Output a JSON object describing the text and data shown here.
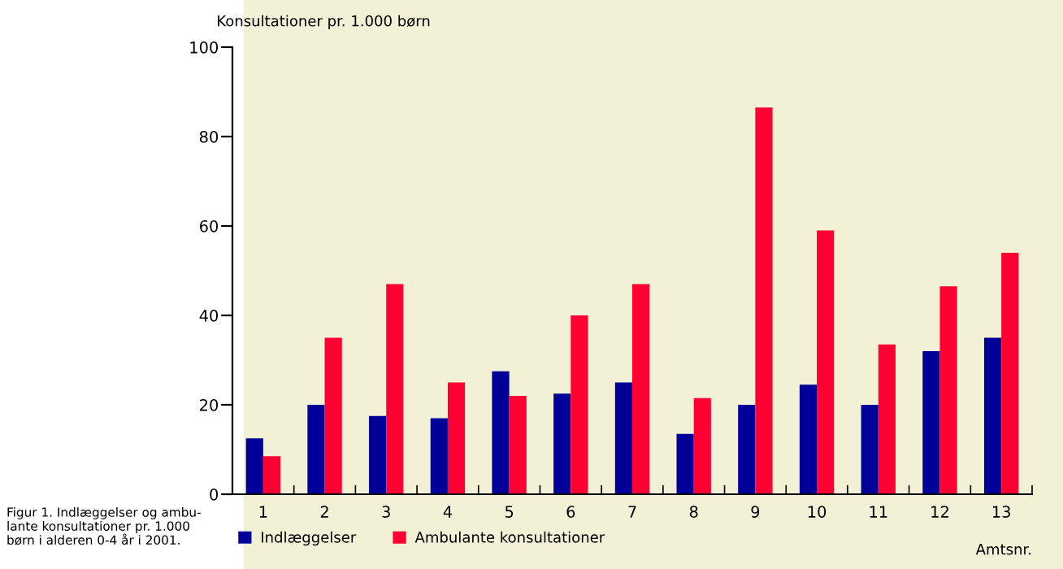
{
  "chart_data": {
    "type": "bar",
    "ylabel": "Konsultationer pr. 1.000 børn",
    "xlabel": "Amtsnr.",
    "categories": [
      "1",
      "2",
      "3",
      "4",
      "5",
      "6",
      "7",
      "8",
      "9",
      "10",
      "11",
      "12",
      "13"
    ],
    "series": [
      {
        "name": "Indlæggelser",
        "color": "#000099",
        "values": [
          12.5,
          20,
          17.5,
          17,
          27.5,
          22.5,
          25,
          13.5,
          20,
          24.5,
          20,
          32,
          35
        ]
      },
      {
        "name": "Ambulante konsultationer",
        "color": "#ff0033",
        "values": [
          8.5,
          35,
          47,
          25,
          22,
          40,
          47,
          21.5,
          86.5,
          59,
          33.5,
          46.5,
          54
        ]
      }
    ],
    "ylim": [
      0,
      100
    ],
    "yticks": [
      0,
      20,
      40,
      60,
      80,
      100
    ],
    "grid": false,
    "legend": "bottom left",
    "annotations": [
      "Figur 1. Indlæggelser og ambu-\nlante konsultationer pr. 1.000\nbørn i alderen 0-4 år i 2001."
    ]
  }
}
